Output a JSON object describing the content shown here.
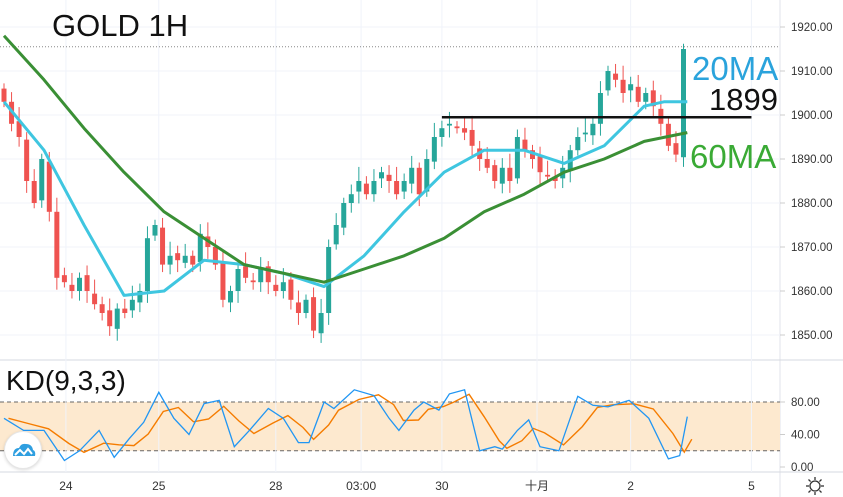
{
  "chart_data": [
    {
      "type": "candlestick",
      "title": "GOLD 1H",
      "ylim": [
        1843,
        1926
      ],
      "y_ticks": [
        "1920.00",
        "1910.00",
        "1900.00",
        "1890.00",
        "1880.00",
        "1870.00",
        "1860.00",
        "1850.00"
      ],
      "y_tick_values": [
        1920,
        1910,
        1900,
        1890,
        1880,
        1870,
        1860,
        1850
      ],
      "x_ticks": [
        {
          "label": "24",
          "index": 8.2
        },
        {
          "label": "25",
          "index": 20.5
        },
        {
          "label": "28",
          "index": 36
        },
        {
          "label": "03:00",
          "index": 47.3
        },
        {
          "label": "30",
          "index": 58
        },
        {
          "label": "十月",
          "index": 70.6
        },
        {
          "label": "2",
          "index": 83
        },
        {
          "label": "5",
          "index": 99
        }
      ],
      "closes": [
        1903,
        1898,
        1895,
        1885,
        1880,
        1890,
        1878,
        1863,
        1862,
        1860,
        1863,
        1860,
        1857,
        1855,
        1852,
        1856,
        1855,
        1858,
        1860,
        1872,
        1875,
        1866,
        1868,
        1867,
        1868,
        1866,
        1873,
        1870,
        1866,
        1858,
        1860,
        1865,
        1863,
        1862,
        1865,
        1862,
        1860,
        1862,
        1858,
        1855,
        1858,
        1851,
        1855,
        1870,
        1875,
        1880,
        1882,
        1885,
        1882,
        1885,
        1887,
        1885,
        1882,
        1885,
        1888,
        1882,
        1890,
        1895,
        1897,
        1898,
        1897,
        1896,
        1893,
        1890,
        1888,
        1885,
        1888,
        1885,
        1895,
        1892,
        1890,
        1887,
        1886,
        1885,
        1888,
        1892,
        1895,
        1896,
        1898,
        1905,
        1910,
        1908,
        1905,
        1907,
        1903,
        1905,
        1902,
        1898,
        1893,
        1891,
        1915
      ],
      "current_price": 1915.5,
      "series": [
        {
          "name": "20MA",
          "color": "#3fc6e0",
          "points": [
            [
              0,
              1903
            ],
            [
              5.3,
              1892
            ],
            [
              10.6,
              1875
            ],
            [
              15.9,
              1859
            ],
            [
              21.2,
              1860
            ],
            [
              26.5,
              1867
            ],
            [
              31.8,
              1866
            ],
            [
              37.1,
              1864
            ],
            [
              42.4,
              1861
            ],
            [
              47.7,
              1868
            ],
            [
              53,
              1878
            ],
            [
              58.3,
              1887
            ],
            [
              63.6,
              1892
            ],
            [
              68.9,
              1892
            ],
            [
              74.2,
              1889
            ],
            [
              79.5,
              1893
            ],
            [
              84.8,
              1902
            ],
            [
              87.4,
              1903
            ],
            [
              90.5,
              1903
            ]
          ]
        },
        {
          "name": "60MA",
          "color": "#3a8f35",
          "points": [
            [
              0,
              1918
            ],
            [
              5.3,
              1908
            ],
            [
              10.6,
              1897
            ],
            [
              15.9,
              1887
            ],
            [
              21.2,
              1878
            ],
            [
              26.5,
              1872
            ],
            [
              31.8,
              1866
            ],
            [
              37.1,
              1864
            ],
            [
              42.4,
              1862
            ],
            [
              47.7,
              1865
            ],
            [
              53,
              1868
            ],
            [
              58.3,
              1872
            ],
            [
              63.6,
              1878
            ],
            [
              68.9,
              1882
            ],
            [
              74.2,
              1887
            ],
            [
              79.5,
              1890
            ],
            [
              84.8,
              1894
            ],
            [
              90.5,
              1896
            ]
          ]
        }
      ],
      "annotations": {
        "level_line": {
          "label": "1899",
          "value": 1899.5,
          "from_index": 58,
          "to_index": 99
        },
        "ma20_label": "20MA",
        "ma60_label": "60MA"
      }
    },
    {
      "type": "line",
      "title": "KD(9,3,3)",
      "ylim": [
        0,
        100
      ],
      "y_ticks": [
        "80.00",
        "40.00",
        "0.00"
      ],
      "y_tick_values": [
        80,
        40,
        0
      ],
      "band": [
        20,
        80
      ],
      "band_color": "#fde9cf",
      "k_color": "#2196f3",
      "d_color": "#f57c00",
      "K": [
        [
          0,
          60
        ],
        [
          2.6,
          45
        ],
        [
          5.3,
          45
        ],
        [
          8,
          8
        ],
        [
          10,
          20
        ],
        [
          12.6,
          45
        ],
        [
          14.6,
          12
        ],
        [
          16.6,
          35
        ],
        [
          18.5,
          55
        ],
        [
          20.5,
          92
        ],
        [
          22.5,
          60
        ],
        [
          24.5,
          40
        ],
        [
          26.5,
          78
        ],
        [
          28.5,
          82
        ],
        [
          30.5,
          25
        ],
        [
          32.5,
          45
        ],
        [
          35,
          72
        ],
        [
          37,
          60
        ],
        [
          39,
          30
        ],
        [
          40.4,
          30
        ],
        [
          42.4,
          80
        ],
        [
          43.7,
          72
        ],
        [
          46.4,
          95
        ],
        [
          49,
          88
        ],
        [
          51,
          60
        ],
        [
          52.3,
          45
        ],
        [
          54.3,
          70
        ],
        [
          55.6,
          80
        ],
        [
          57.6,
          70
        ],
        [
          59,
          90
        ],
        [
          61,
          95
        ],
        [
          63,
          20
        ],
        [
          65,
          25
        ],
        [
          66,
          22
        ],
        [
          68,
          45
        ],
        [
          69.5,
          58
        ],
        [
          71,
          25
        ],
        [
          73.5,
          20
        ],
        [
          76,
          87
        ],
        [
          78,
          76
        ],
        [
          80,
          74
        ],
        [
          82.8,
          82
        ],
        [
          85.4,
          60
        ],
        [
          88,
          10
        ],
        [
          89.5,
          14
        ],
        [
          90.5,
          62
        ]
      ]
    }
  ],
  "colors": {
    "up": "#26a69a",
    "down": "#ef5350"
  },
  "icons": {
    "logo": "tradingview-cloud-icon",
    "settings": "gear-icon"
  }
}
